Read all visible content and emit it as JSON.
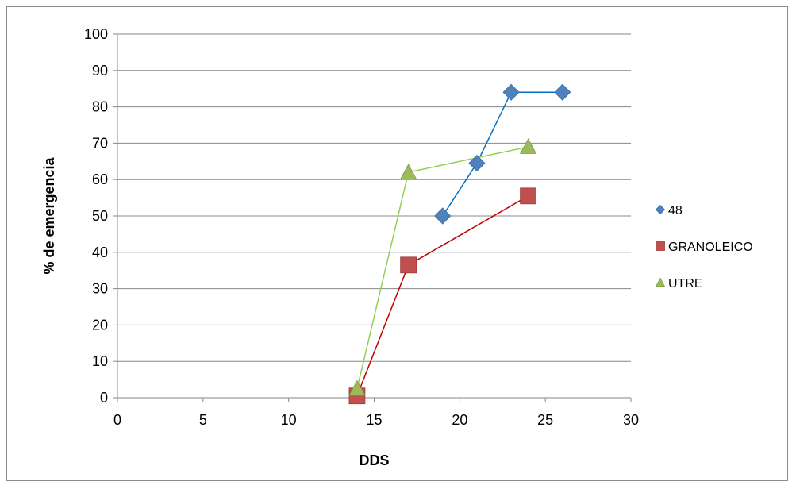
{
  "chart_data": {
    "type": "scatter",
    "title": "",
    "xlabel": "DDS",
    "ylabel": "% de emergencia",
    "xlim": [
      0,
      30
    ],
    "ylim": [
      0,
      100
    ],
    "xticks": [
      0,
      5,
      10,
      15,
      20,
      25,
      30
    ],
    "yticks": [
      0,
      10,
      20,
      30,
      40,
      50,
      60,
      70,
      80,
      90,
      100
    ],
    "grid": "horizontal",
    "legend_position": "right",
    "series": [
      {
        "name": "48",
        "marker": "diamond",
        "color": "#4f81bd",
        "line_color": "#0070c0",
        "points": [
          [
            19,
            50
          ],
          [
            21,
            64.5
          ],
          [
            23,
            84
          ],
          [
            26,
            84
          ]
        ],
        "line": [
          [
            19,
            50
          ],
          [
            21,
            64.5
          ],
          [
            23,
            84
          ],
          [
            26,
            84
          ]
        ]
      },
      {
        "name": "GRANOLEICO",
        "marker": "square",
        "color": "#c0504d",
        "line_color": "#c00000",
        "points": [
          [
            14,
            0.5
          ],
          [
            17,
            36.5
          ],
          [
            24,
            55.5
          ]
        ],
        "line": [
          [
            14,
            0.5
          ],
          [
            17,
            36.5
          ],
          [
            24,
            55.5
          ]
        ]
      },
      {
        "name": "UTRE",
        "marker": "triangle",
        "color": "#9bbb59",
        "line_color": "#92d050",
        "points": [
          [
            14,
            2.5
          ],
          [
            17,
            62
          ],
          [
            24,
            69
          ]
        ],
        "line": [
          [
            14,
            2.5
          ],
          [
            17,
            62
          ],
          [
            24,
            69
          ]
        ]
      }
    ]
  }
}
